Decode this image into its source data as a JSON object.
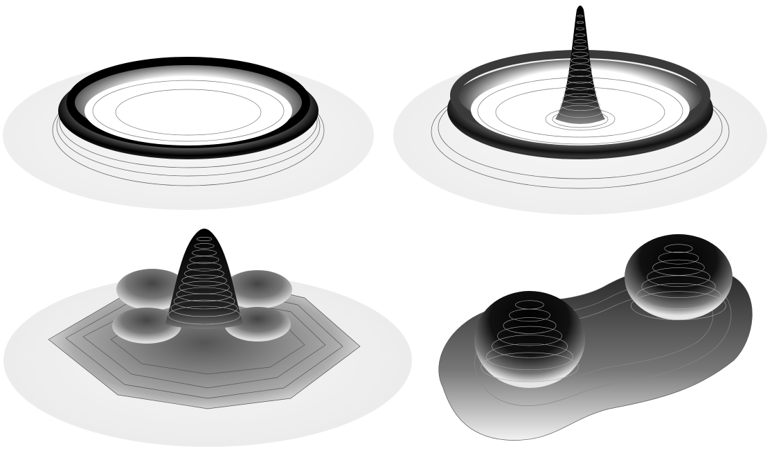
{
  "figure": {
    "panels": [
      {
        "shape": "ring"
      },
      {
        "shape": "ring-with-central-spike"
      },
      {
        "shape": "central-peak-with-four-bumps"
      },
      {
        "shape": "two-peaks"
      }
    ],
    "colors": {
      "background": "#ffffff",
      "peak": "#000000",
      "base": "#f3f3f3",
      "contour_on_light": "#555555",
      "contour_on_dark": "#d8d8d8"
    }
  }
}
